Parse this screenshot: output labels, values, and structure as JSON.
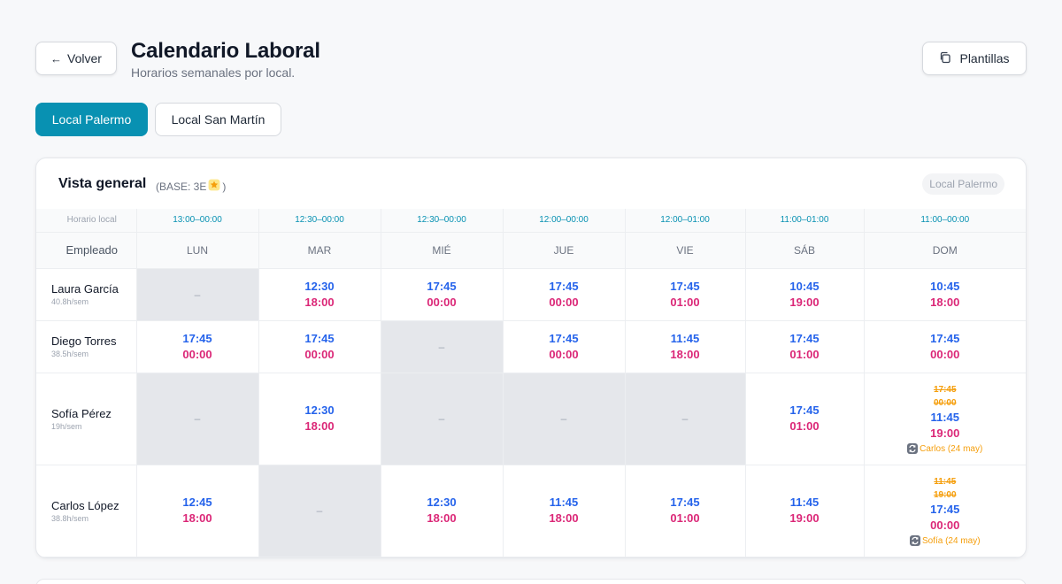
{
  "header": {
    "back_label": "Volver",
    "title": "Calendario Laboral",
    "subtitle": "Horarios semanales por local.",
    "templates_label": "Plantillas"
  },
  "tabs": [
    {
      "label": "Local Palermo",
      "active": true
    },
    {
      "label": "Local San Martín",
      "active": false
    }
  ],
  "overview": {
    "title": "Vista general",
    "base_label": "(BASE: 3E",
    "base_icon": "star-emoji",
    "base_close": ")",
    "local_badge": "Local Palermo",
    "hours_label": "Horario local",
    "employee_label": "Empleado",
    "day_hours": [
      "13:00–00:00",
      "12:30–00:00",
      "12:30–00:00",
      "12:00–00:00",
      "12:00–01:00",
      "11:00–01:00",
      "11:00–00:00"
    ],
    "days": [
      "LUN",
      "MAR",
      "MIÉ",
      "JUE",
      "VIE",
      "SÁB",
      "DOM"
    ]
  },
  "off_marker": "–",
  "employees": [
    {
      "name": "Laura García",
      "hours": "40.8h/sem",
      "shifts": [
        null,
        {
          "start": "12:30",
          "end": "18:00"
        },
        {
          "start": "17:45",
          "end": "00:00"
        },
        {
          "start": "17:45",
          "end": "00:00"
        },
        {
          "start": "17:45",
          "end": "01:00"
        },
        {
          "start": "10:45",
          "end": "19:00"
        },
        {
          "start": "10:45",
          "end": "18:00"
        }
      ]
    },
    {
      "name": "Diego Torres",
      "hours": "38.5h/sem",
      "shifts": [
        {
          "start": "17:45",
          "end": "00:00"
        },
        {
          "start": "17:45",
          "end": "00:00"
        },
        null,
        {
          "start": "17:45",
          "end": "00:00"
        },
        {
          "start": "11:45",
          "end": "18:00"
        },
        {
          "start": "17:45",
          "end": "01:00"
        },
        {
          "start": "17:45",
          "end": "00:00"
        }
      ]
    },
    {
      "name": "Sofía Pérez",
      "hours": "19h/sem",
      "shifts": [
        null,
        {
          "start": "12:30",
          "end": "18:00"
        },
        null,
        null,
        null,
        {
          "start": "17:45",
          "end": "01:00"
        },
        {
          "old_start": "17:45",
          "old_end": "00:00",
          "start": "11:45",
          "end": "19:00",
          "swap_icon": "swap-icon",
          "swap_note": "Carlos (24 may)"
        }
      ]
    },
    {
      "name": "Carlos López",
      "hours": "38.8h/sem",
      "shifts": [
        {
          "start": "12:45",
          "end": "18:00"
        },
        null,
        {
          "start": "12:30",
          "end": "18:00"
        },
        {
          "start": "11:45",
          "end": "18:00"
        },
        {
          "start": "17:45",
          "end": "01:00"
        },
        {
          "start": "11:45",
          "end": "19:00"
        },
        {
          "old_start": "11:45",
          "old_end": "19:00",
          "start": "17:45",
          "end": "00:00",
          "swap_icon": "swap-icon",
          "swap_note": "Sofía (24 may)"
        }
      ]
    }
  ]
}
